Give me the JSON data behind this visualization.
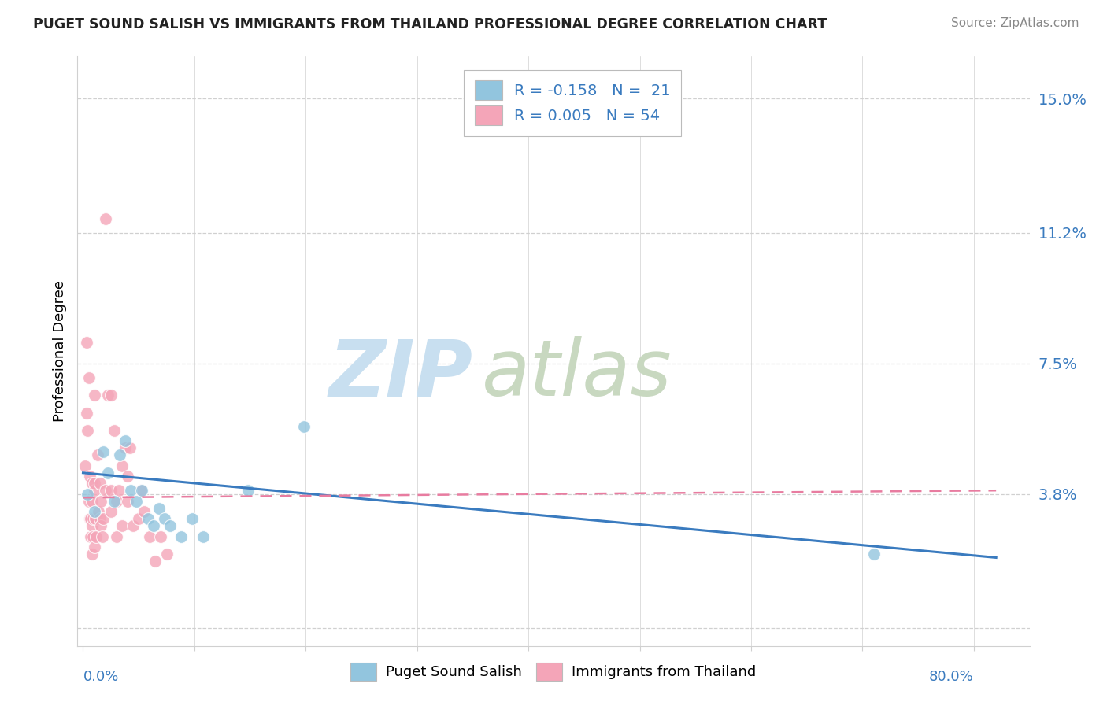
{
  "title": "PUGET SOUND SALISH VS IMMIGRANTS FROM THAILAND PROFESSIONAL DEGREE CORRELATION CHART",
  "source": "Source: ZipAtlas.com",
  "ylabel": "Professional Degree",
  "yticks": [
    0.0,
    0.038,
    0.075,
    0.112,
    0.15
  ],
  "ytick_labels": [
    "",
    "3.8%",
    "7.5%",
    "11.2%",
    "15.0%"
  ],
  "xlim": [
    -0.005,
    0.85
  ],
  "ylim": [
    -0.005,
    0.162
  ],
  "legend_label1": "R = -0.158   N =  21",
  "legend_label2": "R = 0.005   N = 54",
  "blue_color": "#92c5de",
  "pink_color": "#f4a5b8",
  "blue_scatter": [
    [
      0.004,
      0.038
    ],
    [
      0.01,
      0.033
    ],
    [
      0.018,
      0.05
    ],
    [
      0.022,
      0.044
    ],
    [
      0.028,
      0.036
    ],
    [
      0.033,
      0.049
    ],
    [
      0.038,
      0.053
    ],
    [
      0.043,
      0.039
    ],
    [
      0.048,
      0.036
    ],
    [
      0.053,
      0.039
    ],
    [
      0.058,
      0.031
    ],
    [
      0.063,
      0.029
    ],
    [
      0.068,
      0.034
    ],
    [
      0.073,
      0.031
    ],
    [
      0.078,
      0.029
    ],
    [
      0.088,
      0.026
    ],
    [
      0.098,
      0.031
    ],
    [
      0.108,
      0.026
    ],
    [
      0.148,
      0.039
    ],
    [
      0.198,
      0.057
    ],
    [
      0.71,
      0.021
    ]
  ],
  "pink_scatter": [
    [
      0.002,
      0.046
    ],
    [
      0.003,
      0.061
    ],
    [
      0.003,
      0.081
    ],
    [
      0.004,
      0.056
    ],
    [
      0.005,
      0.071
    ],
    [
      0.005,
      0.036
    ],
    [
      0.006,
      0.031
    ],
    [
      0.006,
      0.043
    ],
    [
      0.007,
      0.031
    ],
    [
      0.007,
      0.026
    ],
    [
      0.008,
      0.036
    ],
    [
      0.008,
      0.029
    ],
    [
      0.008,
      0.041
    ],
    [
      0.008,
      0.021
    ],
    [
      0.009,
      0.031
    ],
    [
      0.009,
      0.026
    ],
    [
      0.01,
      0.039
    ],
    [
      0.01,
      0.041
    ],
    [
      0.01,
      0.066
    ],
    [
      0.01,
      0.023
    ],
    [
      0.011,
      0.031
    ],
    [
      0.012,
      0.026
    ],
    [
      0.013,
      0.049
    ],
    [
      0.014,
      0.033
    ],
    [
      0.015,
      0.031
    ],
    [
      0.015,
      0.041
    ],
    [
      0.016,
      0.029
    ],
    [
      0.016,
      0.036
    ],
    [
      0.017,
      0.026
    ],
    [
      0.018,
      0.031
    ],
    [
      0.02,
      0.039
    ],
    [
      0.02,
      0.116
    ],
    [
      0.022,
      0.066
    ],
    [
      0.025,
      0.066
    ],
    [
      0.025,
      0.039
    ],
    [
      0.025,
      0.033
    ],
    [
      0.028,
      0.056
    ],
    [
      0.03,
      0.026
    ],
    [
      0.03,
      0.036
    ],
    [
      0.032,
      0.039
    ],
    [
      0.035,
      0.046
    ],
    [
      0.035,
      0.029
    ],
    [
      0.038,
      0.051
    ],
    [
      0.04,
      0.043
    ],
    [
      0.04,
      0.036
    ],
    [
      0.042,
      0.051
    ],
    [
      0.045,
      0.029
    ],
    [
      0.05,
      0.031
    ],
    [
      0.052,
      0.039
    ],
    [
      0.055,
      0.033
    ],
    [
      0.06,
      0.026
    ],
    [
      0.065,
      0.019
    ],
    [
      0.07,
      0.026
    ],
    [
      0.075,
      0.021
    ]
  ],
  "blue_trend_x": [
    0.0,
    0.82
  ],
  "blue_trend_y": [
    0.044,
    0.02
  ],
  "pink_trend_x": [
    0.0,
    0.82
  ],
  "pink_trend_y": [
    0.037,
    0.039
  ],
  "blue_line_color": "#3a7bbf",
  "pink_line_color": "#e87ca0",
  "grid_color": "#d0d0d0",
  "background_color": "#ffffff",
  "legend_blue_color": "#92c5de",
  "legend_pink_color": "#f4a5b8"
}
